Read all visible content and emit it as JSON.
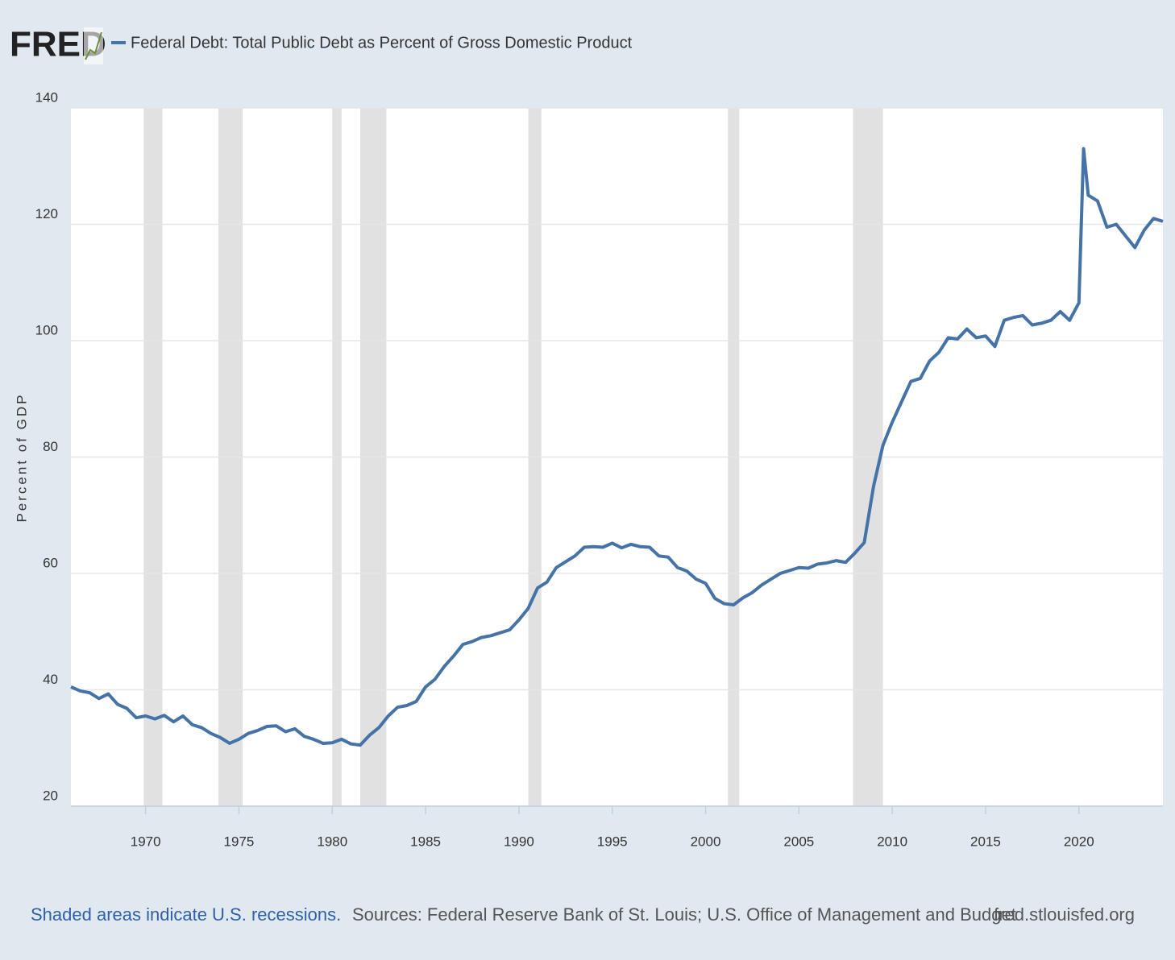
{
  "chart_data": {
    "type": "line",
    "logo": "FRED",
    "y_label": "Percent of GDP",
    "note": "Shaded areas indicate U.S. recessions.",
    "source": "Sources: Federal Reserve Bank of St. Louis; U.S. Office of Management and Budget",
    "url": "fred.stlouisfed.org",
    "x": [
      1966,
      1966.5,
      1967,
      1967.5,
      1968,
      1968.5,
      1969,
      1969.5,
      1970,
      1970.5,
      1971,
      1971.5,
      1972,
      1972.5,
      1973,
      1973.5,
      1974,
      1974.5,
      1975,
      1975.5,
      1976,
      1976.5,
      1977,
      1977.5,
      1978,
      1978.5,
      1979,
      1979.5,
      1980,
      1980.5,
      1981,
      1981.5,
      1982,
      1982.5,
      1983,
      1983.5,
      1984,
      1984.5,
      1985,
      1985.5,
      1986,
      1986.5,
      1987,
      1987.5,
      1988,
      1988.5,
      1989,
      1989.5,
      1990,
      1990.5,
      1991,
      1991.5,
      1992,
      1992.5,
      1993,
      1993.5,
      1994,
      1994.5,
      1995,
      1995.5,
      1996,
      1996.5,
      1997,
      1997.5,
      1998,
      1998.5,
      1999,
      1999.5,
      2000,
      2000.5,
      2001,
      2001.5,
      2002,
      2002.5,
      2003,
      2003.5,
      2004,
      2004.5,
      2005,
      2005.5,
      2006,
      2006.5,
      2007,
      2007.5,
      2008,
      2008.5,
      2009,
      2009.5,
      2010,
      2010.5,
      2011,
      2011.5,
      2012,
      2012.5,
      2013,
      2013.5,
      2014,
      2014.5,
      2015,
      2015.5,
      2016,
      2016.5,
      2017,
      2017.5,
      2018,
      2018.5,
      2019,
      2019.5,
      2020,
      2020.25,
      2020.5,
      2021,
      2021.5,
      2022,
      2022.5,
      2023,
      2023.5,
      2024,
      2024.5
    ],
    "series": [
      {
        "name": "Federal Debt: Total Public Debt as Percent of Gross Domestic Product",
        "color": "#4572a7",
        "values": [
          40.5,
          39.8,
          39.5,
          38.5,
          39.3,
          37.5,
          36.8,
          35.2,
          35.5,
          35.0,
          35.6,
          34.5,
          35.5,
          34,
          33.5,
          32.5,
          31.8,
          30.8,
          31.5,
          32.5,
          33,
          33.7,
          33.8,
          32.8,
          33.3,
          32,
          31.5,
          30.8,
          30.9,
          31.5,
          30.7,
          30.5,
          32.2,
          33.5,
          35.5,
          37,
          37.3,
          38,
          40.5,
          41.8,
          44,
          45.8,
          47.8,
          48.3,
          49,
          49.3,
          49.8,
          50.3,
          52,
          54,
          57.5,
          58.5,
          61,
          62,
          63,
          64.5,
          64.6,
          64.5,
          65.2,
          64.4,
          65,
          64.6,
          64.5,
          63,
          62.8,
          61,
          60.4,
          59,
          58.3,
          55.7,
          54.8,
          54.6,
          55.8,
          56.7,
          58,
          59,
          60,
          60.5,
          61,
          60.9,
          61.6,
          61.8,
          62.2,
          61.9,
          63.5,
          65.3,
          75,
          82,
          86,
          89.5,
          93,
          93.5,
          96.5,
          98,
          100.5,
          100.3,
          102,
          100.5,
          100.8,
          99,
          103.5,
          104,
          104.3,
          102.7,
          103,
          103.5,
          105,
          103.5,
          106.5,
          133,
          125,
          124,
          119.5,
          120,
          118,
          116,
          119,
          121,
          120.5
        ]
      }
    ],
    "recessions": [
      [
        1969.9,
        1970.9
      ],
      [
        1973.9,
        1975.2
      ],
      [
        1980.0,
        1980.5
      ],
      [
        1981.5,
        1982.9
      ],
      [
        1990.5,
        1991.2
      ],
      [
        2001.2,
        2001.8
      ],
      [
        2007.9,
        2009.5
      ]
    ],
    "xlim": [
      1966,
      2024.5
    ],
    "xticks": [
      1970,
      1975,
      1980,
      1985,
      1990,
      1995,
      2000,
      2005,
      2010,
      2015,
      2020
    ],
    "ylim": [
      20,
      140
    ],
    "yticks": [
      20,
      40,
      60,
      80,
      100,
      120,
      140
    ],
    "grid": true
  }
}
